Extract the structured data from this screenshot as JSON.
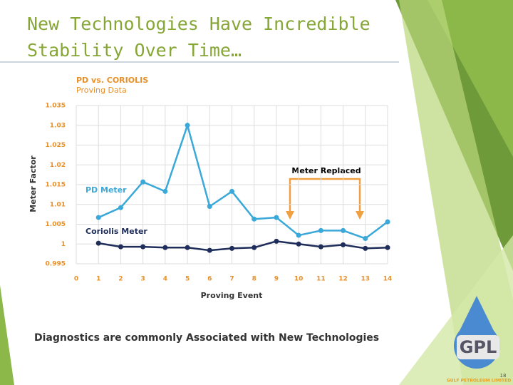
{
  "slide": {
    "title_line1": "New Technologies Have Incredible",
    "title_line2": "Stability Over Time…",
    "caption": "Diagnostics are commonly Associated with New Technologies",
    "logo": "GPL",
    "logo_subtitle": "GULF PETROLEUM LIMITED",
    "page_number": "18"
  },
  "chart_data": {
    "type": "line",
    "title": "PD vs. CORIOLIS",
    "subtitle": "Proving Data",
    "x_label": "Proving Event",
    "y_label": "Meter Factor",
    "x": [
      1,
      2,
      3,
      4,
      5,
      6,
      7,
      8,
      9,
      10,
      11,
      12,
      13,
      14
    ],
    "series": [
      {
        "name": "PD Meter",
        "color": "#3aa8d8",
        "values": [
          1.0067,
          1.0092,
          1.0157,
          1.0133,
          1.03,
          1.0095,
          1.0133,
          1.0063,
          1.0067,
          1.0022,
          1.0034,
          1.0034,
          1.0014,
          1.0056
        ]
      },
      {
        "name": "Coriolis Meter",
        "color": "#1f2d5a",
        "values": [
          1.0002,
          0.9993,
          0.9993,
          0.9991,
          0.9991,
          0.9984,
          0.9989,
          0.9991,
          1.0007,
          1.0,
          0.9993,
          0.9998,
          0.9989,
          0.9991
        ]
      }
    ],
    "annotation": "Meter Replaced",
    "annotation_color": "#f0a040",
    "xlim": [
      0,
      14
    ],
    "xticks": [
      0,
      1,
      2,
      3,
      4,
      5,
      6,
      7,
      8,
      9,
      10,
      11,
      12,
      13,
      14
    ],
    "ylim": [
      0.995,
      1.035
    ],
    "yticks": [
      0.995,
      1,
      1.005,
      1.01,
      1.015,
      1.02,
      1.025,
      1.03,
      1.035
    ],
    "grid": true
  }
}
